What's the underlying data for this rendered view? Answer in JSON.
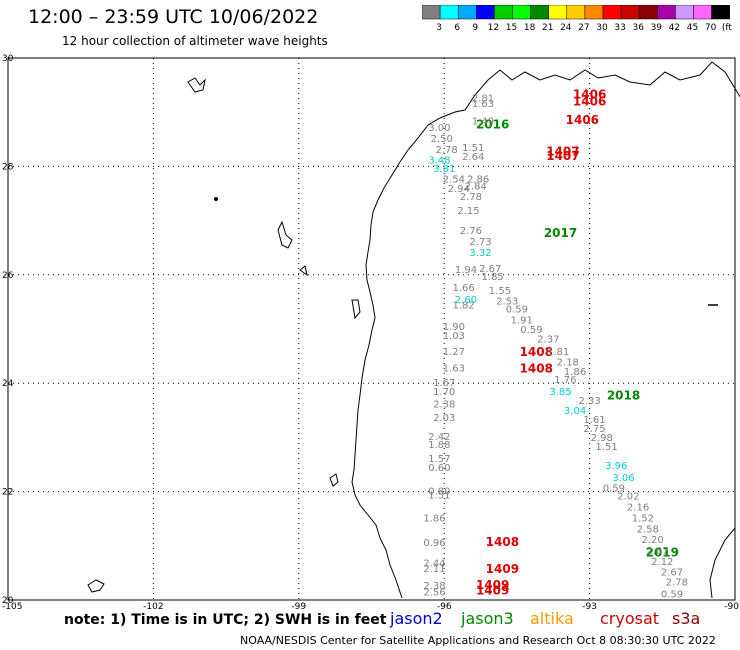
{
  "header": {
    "title": "12:00 – 23:59 UTC 10/06/2022",
    "subtitle": "12 hour collection of altimeter wave heights"
  },
  "colorbar": {
    "colors": [
      "#808080",
      "#00ffff",
      "#00aaff",
      "#0000ff",
      "#00cc00",
      "#00ff00",
      "#008800",
      "#ffff00",
      "#ffcc00",
      "#ff8800",
      "#ff0000",
      "#cc0000",
      "#880000",
      "#aa00aa",
      "#cc99ff",
      "#ff66ff",
      "#000000"
    ],
    "labels": [
      "3",
      "6",
      "9",
      "12",
      "15",
      "18",
      "21",
      "24",
      "27",
      "30",
      "33",
      "36",
      "39",
      "42",
      "45",
      "70",
      "(ft)"
    ]
  },
  "axes": {
    "lat_ticks": [
      "30",
      "28",
      "26",
      "24",
      "22",
      "20"
    ],
    "lon_ticks": [
      "-105",
      "-102",
      "-99",
      "-96",
      "-93",
      "-90"
    ]
  },
  "chart_data": {
    "type": "scatter",
    "xlim": [
      -105,
      -90
    ],
    "ylim": [
      20,
      30
    ],
    "grid": true,
    "labels": [
      {
        "text": "1406",
        "lon": -93.0,
        "lat": 29.25,
        "color": "#dd0000",
        "big": true
      },
      {
        "text": "1406",
        "lon": -93.0,
        "lat": 29.12,
        "color": "#dd0000",
        "big": true
      },
      {
        "text": "1406",
        "lon": -93.15,
        "lat": 28.78,
        "color": "#dd0000",
        "big": true
      },
      {
        "text": "2016",
        "lon": -95.0,
        "lat": 28.7,
        "color": "#008800",
        "big": true
      },
      {
        "text": "1407",
        "lon": -93.55,
        "lat": 28.2,
        "color": "#dd0000",
        "big": true
      },
      {
        "text": "1407",
        "lon": -93.55,
        "lat": 28.12,
        "color": "#dd0000",
        "big": true
      },
      {
        "text": "2017",
        "lon": -93.6,
        "lat": 26.7,
        "color": "#008800",
        "big": true
      },
      {
        "text": "1408",
        "lon": -94.1,
        "lat": 24.5,
        "color": "#dd0000",
        "big": true
      },
      {
        "text": "1408",
        "lon": -94.1,
        "lat": 24.2,
        "color": "#dd0000",
        "big": true
      },
      {
        "text": "2018",
        "lon": -92.3,
        "lat": 23.7,
        "color": "#008800",
        "big": true
      },
      {
        "text": "1408",
        "lon": -94.8,
        "lat": 21.0,
        "color": "#dd0000",
        "big": true
      },
      {
        "text": "1409",
        "lon": -94.8,
        "lat": 20.5,
        "color": "#dd0000",
        "big": true
      },
      {
        "text": "1409",
        "lon": -95.0,
        "lat": 20.2,
        "color": "#dd0000",
        "big": true
      },
      {
        "text": "1409",
        "lon": -95.0,
        "lat": 20.1,
        "color": "#dd0000",
        "big": true
      },
      {
        "text": "2019",
        "lon": -91.5,
        "lat": 20.8,
        "color": "#008800",
        "big": true
      },
      {
        "text": "2.81",
        "lon": -95.2,
        "lat": 29.2,
        "color": "#808080"
      },
      {
        "text": "1.63",
        "lon": -95.2,
        "lat": 29.1,
        "color": "#808080"
      },
      {
        "text": "1.49",
        "lon": -95.2,
        "lat": 28.77,
        "color": "#808080"
      },
      {
        "text": "3.00",
        "lon": -96.1,
        "lat": 28.65,
        "color": "#808080"
      },
      {
        "text": "2.50",
        "lon": -96.05,
        "lat": 28.45,
        "color": "#808080"
      },
      {
        "text": "2.78",
        "lon": -95.95,
        "lat": 28.25,
        "color": "#808080"
      },
      {
        "text": "1.51",
        "lon": -95.4,
        "lat": 28.28,
        "color": "#808080"
      },
      {
        "text": "2.64",
        "lon": -95.4,
        "lat": 28.12,
        "color": "#808080"
      },
      {
        "text": "2.54",
        "lon": -95.8,
        "lat": 27.7,
        "color": "#808080"
      },
      {
        "text": "2.86",
        "lon": -95.3,
        "lat": 27.7,
        "color": "#808080"
      },
      {
        "text": "2.94",
        "lon": -95.7,
        "lat": 27.53,
        "color": "#808080"
      },
      {
        "text": "2.84",
        "lon": -95.35,
        "lat": 27.57,
        "color": "#808080"
      },
      {
        "text": "2.78",
        "lon": -95.45,
        "lat": 27.38,
        "color": "#808080"
      },
      {
        "text": "2.15",
        "lon": -95.5,
        "lat": 27.12,
        "color": "#808080"
      },
      {
        "text": "2.76",
        "lon": -95.45,
        "lat": 26.75,
        "color": "#808080"
      },
      {
        "text": "2.73",
        "lon": -95.25,
        "lat": 26.55,
        "color": "#808080"
      },
      {
        "text": "1.94",
        "lon": -95.55,
        "lat": 26.03,
        "color": "#808080"
      },
      {
        "text": "2.67",
        "lon": -95.05,
        "lat": 26.05,
        "color": "#808080"
      },
      {
        "text": "1.85",
        "lon": -95.0,
        "lat": 25.9,
        "color": "#808080"
      },
      {
        "text": "1.66",
        "lon": -95.6,
        "lat": 25.7,
        "color": "#808080"
      },
      {
        "text": "1.55",
        "lon": -94.85,
        "lat": 25.65,
        "color": "#808080"
      },
      {
        "text": "2.53",
        "lon": -94.7,
        "lat": 25.45,
        "color": "#808080"
      },
      {
        "text": "1.82",
        "lon": -95.6,
        "lat": 25.38,
        "color": "#808080"
      },
      {
        "text": "0.59",
        "lon": -94.5,
        "lat": 25.3,
        "color": "#808080"
      },
      {
        "text": "1.91",
        "lon": -94.4,
        "lat": 25.1,
        "color": "#808080"
      },
      {
        "text": "1.90",
        "lon": -95.8,
        "lat": 24.98,
        "color": "#808080"
      },
      {
        "text": "0.59",
        "lon": -94.2,
        "lat": 24.93,
        "color": "#808080"
      },
      {
        "text": "1.03",
        "lon": -95.8,
        "lat": 24.82,
        "color": "#808080"
      },
      {
        "text": "2.37",
        "lon": -93.85,
        "lat": 24.75,
        "color": "#808080"
      },
      {
        "text": "1.27",
        "lon": -95.8,
        "lat": 24.52,
        "color": "#808080"
      },
      {
        "text": "1.81",
        "lon": -93.65,
        "lat": 24.52,
        "color": "#808080"
      },
      {
        "text": "1.63",
        "lon": -95.8,
        "lat": 24.22,
        "color": "#808080"
      },
      {
        "text": "2.18",
        "lon": -93.45,
        "lat": 24.33,
        "color": "#808080"
      },
      {
        "text": "1.86",
        "lon": -93.3,
        "lat": 24.15,
        "color": "#808080"
      },
      {
        "text": "1.67",
        "lon": -96.0,
        "lat": 23.95,
        "color": "#808080"
      },
      {
        "text": "1.76",
        "lon": -93.5,
        "lat": 24.0,
        "color": "#808080"
      },
      {
        "text": "1.70",
        "lon": -96.0,
        "lat": 23.78,
        "color": "#808080"
      },
      {
        "text": "2.33",
        "lon": -93.0,
        "lat": 23.62,
        "color": "#808080"
      },
      {
        "text": "2.38",
        "lon": -96.0,
        "lat": 23.55,
        "color": "#808080"
      },
      {
        "text": "1.61",
        "lon": -92.9,
        "lat": 23.27,
        "color": "#808080"
      },
      {
        "text": "2.03",
        "lon": -96.0,
        "lat": 23.3,
        "color": "#808080"
      },
      {
        "text": "2.75",
        "lon": -92.9,
        "lat": 23.1,
        "color": "#808080"
      },
      {
        "text": "2.42",
        "lon": -96.1,
        "lat": 22.95,
        "color": "#808080"
      },
      {
        "text": "2.98",
        "lon": -92.75,
        "lat": 22.93,
        "color": "#808080"
      },
      {
        "text": "1.88",
        "lon": -96.1,
        "lat": 22.8,
        "color": "#808080"
      },
      {
        "text": "1.51",
        "lon": -92.65,
        "lat": 22.77,
        "color": "#808080"
      },
      {
        "text": "1.57",
        "lon": -96.1,
        "lat": 22.55,
        "color": "#808080"
      },
      {
        "text": "0.60",
        "lon": -96.1,
        "lat": 22.38,
        "color": "#808080"
      },
      {
        "text": "0.59",
        "lon": -92.5,
        "lat": 22.0,
        "color": "#808080"
      },
      {
        "text": "0.80",
        "lon": -96.1,
        "lat": 21.95,
        "color": "#808080"
      },
      {
        "text": "1.51",
        "lon": -96.1,
        "lat": 21.87,
        "color": "#808080"
      },
      {
        "text": "2.02",
        "lon": -92.2,
        "lat": 21.85,
        "color": "#808080"
      },
      {
        "text": "2.16",
        "lon": -92.0,
        "lat": 21.65,
        "color": "#808080"
      },
      {
        "text": "1.86",
        "lon": -96.2,
        "lat": 21.45,
        "color": "#808080"
      },
      {
        "text": "1.52",
        "lon": -91.9,
        "lat": 21.45,
        "color": "#808080"
      },
      {
        "text": "2.58",
        "lon": -91.8,
        "lat": 21.25,
        "color": "#808080"
      },
      {
        "text": "0.96",
        "lon": -96.2,
        "lat": 21.0,
        "color": "#808080"
      },
      {
        "text": "2.20",
        "lon": -91.7,
        "lat": 21.05,
        "color": "#808080"
      },
      {
        "text": "2.67",
        "lon": -91.6,
        "lat": 20.85,
        "color": "#808080"
      },
      {
        "text": "2.44",
        "lon": -96.2,
        "lat": 20.62,
        "color": "#808080"
      },
      {
        "text": "2.12",
        "lon": -91.5,
        "lat": 20.65,
        "color": "#808080"
      },
      {
        "text": "2.11",
        "lon": -96.2,
        "lat": 20.52,
        "color": "#808080"
      },
      {
        "text": "2.67",
        "lon": -91.3,
        "lat": 20.45,
        "color": "#808080"
      },
      {
        "text": "2.78",
        "lon": -91.2,
        "lat": 20.27,
        "color": "#808080"
      },
      {
        "text": "2.38",
        "lon": -96.2,
        "lat": 20.2,
        "color": "#808080"
      },
      {
        "text": "2.56",
        "lon": -96.2,
        "lat": 20.08,
        "color": "#808080"
      },
      {
        "text": "0.59",
        "lon": -91.3,
        "lat": 20.05,
        "color": "#808080"
      },
      {
        "text": "3.48",
        "lon": -96.1,
        "lat": 28.05,
        "color": "#00cccc"
      },
      {
        "text": "3.81",
        "lon": -96.0,
        "lat": 27.9,
        "color": "#00cccc"
      },
      {
        "text": "3.32",
        "lon": -95.25,
        "lat": 26.35,
        "color": "#00cccc"
      },
      {
        "text": "2.60",
        "lon": -95.55,
        "lat": 25.48,
        "color": "#00cccc"
      },
      {
        "text": "3.85",
        "lon": -93.6,
        "lat": 23.78,
        "color": "#00cccc"
      },
      {
        "text": "3.04",
        "lon": -93.3,
        "lat": 23.43,
        "color": "#00cccc"
      },
      {
        "text": "3.96",
        "lon": -92.45,
        "lat": 22.42,
        "color": "#00cccc"
      },
      {
        "text": "3.06",
        "lon": -92.3,
        "lat": 22.2,
        "color": "#00cccc"
      }
    ]
  },
  "footer": {
    "note": "note: 1) Time is in UTC; 2) SWH is in feet",
    "legend": [
      {
        "text": "jason2",
        "color": "#0000cc"
      },
      {
        "text": "jason3",
        "color": "#008800"
      },
      {
        "text": "altika",
        "color": "#ff9900"
      },
      {
        "text": "cryosat",
        "color": "#cc0000"
      },
      {
        "text": "s3a",
        "color": "#880000"
      }
    ],
    "credit": "NOAA/NESDIS Center for Satellite Applications and Research   Oct  8 08:30:30 UTC 2022"
  }
}
